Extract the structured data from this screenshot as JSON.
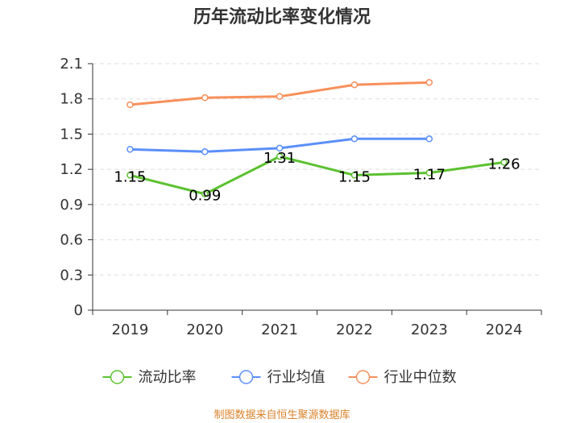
{
  "chart_data": {
    "type": "line",
    "title": "历年流动比率变化情况",
    "categories": [
      "2019",
      "2020",
      "2021",
      "2022",
      "2023",
      "2024"
    ],
    "ylim": [
      0,
      2.1
    ],
    "yticks": [
      "0",
      "0.3",
      "0.6",
      "0.9",
      "1.2",
      "1.5",
      "1.8",
      "2.1"
    ],
    "grid": true,
    "legend_position": "bottom",
    "series": [
      {
        "name": "流动比率",
        "color": "#5cc130",
        "values": [
          1.15,
          0.99,
          1.31,
          1.15,
          1.17,
          1.26
        ],
        "labels": [
          "1.15",
          "0.99",
          "1.31",
          "1.15",
          "1.17",
          "1.26"
        ]
      },
      {
        "name": "行业均值",
        "color": "#5b8ff9",
        "values": [
          1.37,
          1.35,
          1.38,
          1.46,
          1.46,
          null
        ]
      },
      {
        "name": "行业中位数",
        "color": "#f7905b",
        "values": [
          1.75,
          1.81,
          1.82,
          1.92,
          1.94,
          null
        ]
      }
    ],
    "source": "制图数据来自恒生聚源数据库"
  }
}
